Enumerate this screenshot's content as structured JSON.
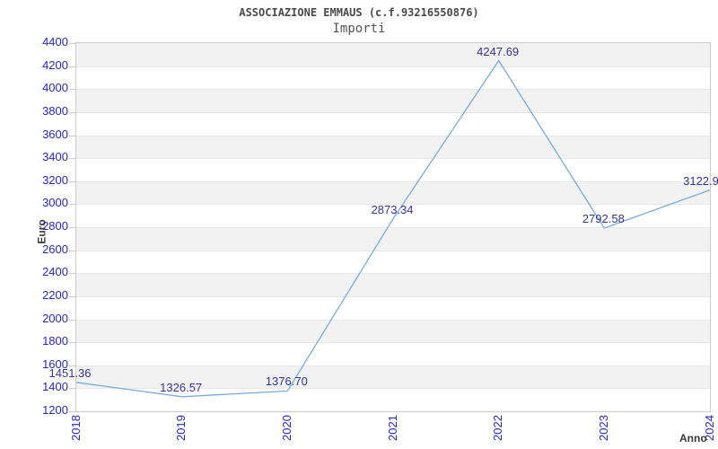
{
  "header": {
    "title": "ASSOCIAZIONE EMMAUS (c.f.93216550876)",
    "subtitle": "Importi"
  },
  "chart_data": {
    "type": "line",
    "title": "ASSOCIAZIONE EMMAUS (c.f.93216550876)",
    "subtitle": "Importi",
    "xlabel": "Anno",
    "ylabel": "Euro",
    "categories": [
      "2018",
      "2019",
      "2020",
      "2021",
      "2022",
      "2023",
      "2024"
    ],
    "series": [
      {
        "name": "Importi",
        "values": [
          1451.36,
          1326.57,
          1376.7,
          2873.34,
          4247.69,
          2792.58,
          3122.9
        ]
      }
    ],
    "point_labels": [
      "1451.36",
      "1326.57",
      "1376.70",
      "2873.34",
      "4247.69",
      "2792.58",
      "3122.9"
    ],
    "point_label_dx": [
      -6,
      0,
      0,
      0,
      0,
      0,
      -9
    ],
    "ylim": [
      1200,
      4400
    ],
    "ytick_step": 200,
    "ytick_labels": [
      "1200",
      "1400",
      "1600",
      "1800",
      "2000",
      "2200",
      "2400",
      "2600",
      "2800",
      "3000",
      "3200",
      "3400",
      "3600",
      "3800",
      "4000",
      "4200",
      "4400"
    ],
    "grid": "horizontal-bands-alternating",
    "legend": "none",
    "colors": {
      "line": "#79abde",
      "axis_tick_labels": "#2626cc",
      "point_labels": "#333399",
      "band_gray": "#f2f2f2",
      "band_white": "#ffffff",
      "gridline": "#e7e7e7",
      "plot_border": "#cccccc",
      "title": "#4a4a4a",
      "axis_titles": "#3a3a3a",
      "background": "#ffffff"
    }
  }
}
